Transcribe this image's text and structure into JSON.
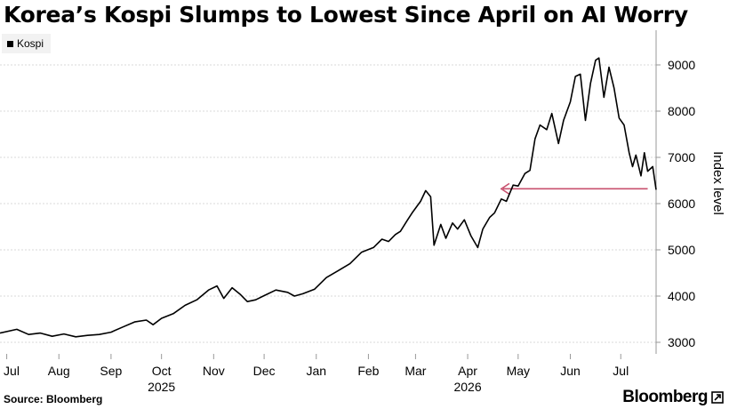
{
  "header": {
    "title": "Korea’s Kospi Slumps to Lowest Since April on AI Worry"
  },
  "footer": {
    "source": "Source: Bloomberg",
    "brand": "Bloomberg"
  },
  "chart_data": {
    "type": "line",
    "title": "Korea’s Kospi Slumps to Lowest Since April on AI Worry",
    "ylabel": "Index level",
    "ylim": [
      2750,
      9750
    ],
    "yticks": [
      3000,
      4000,
      5000,
      6000,
      7000,
      8000,
      9000
    ],
    "grid": true,
    "legend": {
      "position": "top-left",
      "entries": [
        "Kospi"
      ]
    },
    "colors": {
      "line": "#000000",
      "arrow": "#c8506e",
      "grid": "#d9d9d9"
    },
    "xlim": [
      "2025-06-27",
      "2026-07-22"
    ],
    "xticks": [
      {
        "date": "2025-07-01",
        "label": "Jul",
        "sublabel": ""
      },
      {
        "date": "2025-08-01",
        "label": "Aug",
        "sublabel": ""
      },
      {
        "date": "2025-09-01",
        "label": "Sep",
        "sublabel": ""
      },
      {
        "date": "2025-10-01",
        "label": "Oct",
        "sublabel": "2025"
      },
      {
        "date": "2025-11-01",
        "label": "Nov",
        "sublabel": ""
      },
      {
        "date": "2025-12-01",
        "label": "Dec",
        "sublabel": ""
      },
      {
        "date": "2026-01-01",
        "label": "Jan",
        "sublabel": ""
      },
      {
        "date": "2026-02-01",
        "label": "Feb",
        "sublabel": ""
      },
      {
        "date": "2026-03-01",
        "label": "Mar",
        "sublabel": ""
      },
      {
        "date": "2026-04-01",
        "label": "Apr",
        "sublabel": "2026"
      },
      {
        "date": "2026-05-01",
        "label": "May",
        "sublabel": ""
      },
      {
        "date": "2026-06-01",
        "label": "Jun",
        "sublabel": ""
      },
      {
        "date": "2026-07-01",
        "label": "Jul",
        "sublabel": ""
      }
    ],
    "series": [
      {
        "name": "Kospi",
        "points": [
          [
            "2025-06-27",
            3200
          ],
          [
            "2025-07-07",
            3280
          ],
          [
            "2025-07-14",
            3170
          ],
          [
            "2025-07-21",
            3200
          ],
          [
            "2025-07-28",
            3130
          ],
          [
            "2025-08-04",
            3180
          ],
          [
            "2025-08-11",
            3120
          ],
          [
            "2025-08-18",
            3150
          ],
          [
            "2025-08-25",
            3170
          ],
          [
            "2025-09-01",
            3220
          ],
          [
            "2025-09-08",
            3330
          ],
          [
            "2025-09-15",
            3440
          ],
          [
            "2025-09-22",
            3480
          ],
          [
            "2025-09-26",
            3380
          ],
          [
            "2025-10-01",
            3520
          ],
          [
            "2025-10-08",
            3620
          ],
          [
            "2025-10-15",
            3800
          ],
          [
            "2025-10-22",
            3920
          ],
          [
            "2025-10-29",
            4130
          ],
          [
            "2025-11-03",
            4220
          ],
          [
            "2025-11-07",
            3950
          ],
          [
            "2025-11-12",
            4180
          ],
          [
            "2025-11-17",
            4030
          ],
          [
            "2025-11-21",
            3880
          ],
          [
            "2025-11-26",
            3920
          ],
          [
            "2025-12-01",
            4010
          ],
          [
            "2025-12-08",
            4130
          ],
          [
            "2025-12-15",
            4080
          ],
          [
            "2025-12-19",
            4000
          ],
          [
            "2025-12-24",
            4050
          ],
          [
            "2025-12-31",
            4150
          ],
          [
            "2026-01-07",
            4400
          ],
          [
            "2026-01-14",
            4550
          ],
          [
            "2026-01-21",
            4700
          ],
          [
            "2026-01-28",
            4950
          ],
          [
            "2026-02-04",
            5050
          ],
          [
            "2026-02-09",
            5230
          ],
          [
            "2026-02-13",
            5180
          ],
          [
            "2026-02-17",
            5330
          ],
          [
            "2026-02-20",
            5400
          ],
          [
            "2026-02-24",
            5630
          ],
          [
            "2026-02-27",
            5800
          ],
          [
            "2026-03-04",
            6050
          ],
          [
            "2026-03-07",
            6280
          ],
          [
            "2026-03-10",
            6150
          ],
          [
            "2026-03-12",
            5100
          ],
          [
            "2026-03-16",
            5550
          ],
          [
            "2026-03-19",
            5250
          ],
          [
            "2026-03-23",
            5580
          ],
          [
            "2026-03-26",
            5450
          ],
          [
            "2026-03-30",
            5650
          ],
          [
            "2026-04-03",
            5300
          ],
          [
            "2026-04-07",
            5050
          ],
          [
            "2026-04-10",
            5450
          ],
          [
            "2026-04-14",
            5700
          ],
          [
            "2026-04-17",
            5800
          ],
          [
            "2026-04-21",
            6100
          ],
          [
            "2026-04-24",
            6050
          ],
          [
            "2026-04-28",
            6400
          ],
          [
            "2026-05-01",
            6380
          ],
          [
            "2026-05-05",
            6650
          ],
          [
            "2026-05-08",
            6720
          ],
          [
            "2026-05-11",
            7400
          ],
          [
            "2026-05-14",
            7700
          ],
          [
            "2026-05-18",
            7600
          ],
          [
            "2026-05-21",
            7950
          ],
          [
            "2026-05-25",
            7300
          ],
          [
            "2026-05-28",
            7800
          ],
          [
            "2026-06-01",
            8200
          ],
          [
            "2026-06-04",
            8750
          ],
          [
            "2026-06-07",
            8800
          ],
          [
            "2026-06-10",
            7800
          ],
          [
            "2026-06-13",
            8600
          ],
          [
            "2026-06-16",
            9100
          ],
          [
            "2026-06-18",
            9150
          ],
          [
            "2026-06-21",
            8300
          ],
          [
            "2026-06-24",
            8950
          ],
          [
            "2026-06-27",
            8500
          ],
          [
            "2026-06-30",
            7850
          ],
          [
            "2026-07-03",
            7700
          ],
          [
            "2026-07-06",
            7100
          ],
          [
            "2026-07-08",
            6800
          ],
          [
            "2026-07-10",
            7050
          ],
          [
            "2026-07-13",
            6600
          ],
          [
            "2026-07-15",
            7100
          ],
          [
            "2026-07-17",
            6700
          ],
          [
            "2026-07-20",
            6800
          ],
          [
            "2026-07-22",
            6300
          ]
        ]
      }
    ],
    "annotations": [
      {
        "type": "arrow",
        "from": [
          "2026-07-17",
          6320
        ],
        "to": [
          "2026-04-21",
          6320
        ]
      }
    ]
  }
}
